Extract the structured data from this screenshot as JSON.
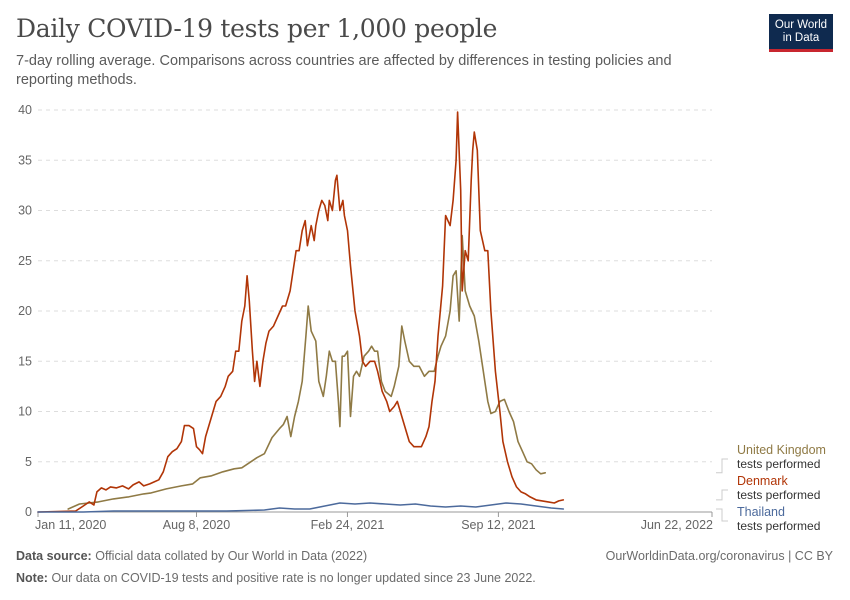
{
  "header": {
    "title": "Daily COVID-19 tests per 1,000 people",
    "subtitle": "7-day rolling average. Comparisons across countries are affected by differences in testing policies and reporting methods."
  },
  "logo": {
    "line1": "Our World",
    "line2": "in Data"
  },
  "footer": {
    "source_label": "Data source:",
    "source_text": "Official data collated by Our World in Data (2022)",
    "attribution": "OurWorldinData.org/coronavirus | CC BY",
    "note_label": "Note:",
    "note_text": "Our data on COVID-19 tests and positive rate is no longer updated since 23 June 2022."
  },
  "chart_data": {
    "type": "line",
    "title": "Daily COVID-19 tests per 1,000 people",
    "xlabel": "",
    "ylabel": "",
    "ylim": [
      0,
      40
    ],
    "y_ticks": [
      0,
      5,
      10,
      15,
      20,
      25,
      30,
      35,
      40
    ],
    "x_range_days": [
      0,
      893
    ],
    "x_ticks": [
      {
        "day": 0,
        "label": "Jan 11, 2020"
      },
      {
        "day": 210,
        "label": "Aug 8, 2020"
      },
      {
        "day": 410,
        "label": "Feb 24, 2021"
      },
      {
        "day": 610,
        "label": "Sep 12, 2021"
      },
      {
        "day": 893,
        "label": "Jun 22, 2022"
      }
    ],
    "grid": true,
    "legend_position": "right",
    "series": [
      {
        "name": "United Kingdom",
        "sublabel": "tests performed",
        "color": "#8f7a45",
        "points": [
          [
            40,
            0.3
          ],
          [
            55,
            0.8
          ],
          [
            80,
            1
          ],
          [
            100,
            1.3
          ],
          [
            120,
            1.5
          ],
          [
            140,
            1.8
          ],
          [
            150,
            1.9
          ],
          [
            170,
            2.3
          ],
          [
            190,
            2.6
          ],
          [
            205,
            2.8
          ],
          [
            215,
            3.4
          ],
          [
            230,
            3.6
          ],
          [
            245,
            4
          ],
          [
            260,
            4.3
          ],
          [
            270,
            4.4
          ],
          [
            280,
            4.9
          ],
          [
            290,
            5.4
          ],
          [
            300,
            5.8
          ],
          [
            310,
            7.4
          ],
          [
            320,
            8.3
          ],
          [
            325,
            8.7
          ],
          [
            330,
            9.5
          ],
          [
            335,
            7.5
          ],
          [
            340,
            9.5
          ],
          [
            345,
            11
          ],
          [
            350,
            13
          ],
          [
            355,
            17.5
          ],
          [
            358,
            20.5
          ],
          [
            362,
            18
          ],
          [
            368,
            17
          ],
          [
            372,
            13
          ],
          [
            378,
            11.5
          ],
          [
            382,
            13.5
          ],
          [
            386,
            16
          ],
          [
            390,
            15
          ],
          [
            394,
            15
          ],
          [
            398,
            11
          ],
          [
            400,
            8.5
          ],
          [
            403,
            15.5
          ],
          [
            406,
            15.5
          ],
          [
            410,
            16
          ],
          [
            414,
            9.5
          ],
          [
            418,
            13.5
          ],
          [
            422,
            14
          ],
          [
            426,
            13.5
          ],
          [
            432,
            15.5
          ],
          [
            438,
            16
          ],
          [
            442,
            16.5
          ],
          [
            446,
            16
          ],
          [
            450,
            16
          ],
          [
            455,
            13
          ],
          [
            460,
            12
          ],
          [
            468,
            11.5
          ],
          [
            472,
            12.5
          ],
          [
            478,
            14.5
          ],
          [
            482,
            18.5
          ],
          [
            486,
            17
          ],
          [
            492,
            15
          ],
          [
            498,
            14.5
          ],
          [
            505,
            14.5
          ],
          [
            512,
            13.5
          ],
          [
            518,
            14
          ],
          [
            525,
            14
          ],
          [
            530,
            15.5
          ],
          [
            534,
            16.5
          ],
          [
            540,
            17.5
          ],
          [
            546,
            20
          ],
          [
            550,
            23.5
          ],
          [
            554,
            24
          ],
          [
            558,
            19
          ],
          [
            562,
            27.5
          ],
          [
            566,
            22
          ],
          [
            572,
            20.5
          ],
          [
            578,
            19.5
          ],
          [
            584,
            17
          ],
          [
            590,
            14
          ],
          [
            596,
            11
          ],
          [
            600,
            9.8
          ],
          [
            606,
            10
          ],
          [
            612,
            11
          ],
          [
            618,
            11.2
          ],
          [
            624,
            10
          ],
          [
            630,
            9
          ],
          [
            636,
            7
          ],
          [
            642,
            6
          ],
          [
            648,
            5
          ],
          [
            654,
            4.8
          ],
          [
            660,
            4.2
          ],
          [
            666,
            3.8
          ],
          [
            672,
            3.9
          ]
        ]
      },
      {
        "name": "Denmark",
        "sublabel": "tests performed",
        "color": "#b13507",
        "points": [
          [
            0,
            0
          ],
          [
            50,
            0.1
          ],
          [
            60,
            0.6
          ],
          [
            68,
            1
          ],
          [
            74,
            0.7
          ],
          [
            78,
            2
          ],
          [
            84,
            2.4
          ],
          [
            90,
            2.2
          ],
          [
            96,
            2.5
          ],
          [
            104,
            2.4
          ],
          [
            112,
            2.6
          ],
          [
            120,
            2.3
          ],
          [
            126,
            2.7
          ],
          [
            134,
            3
          ],
          [
            140,
            2.6
          ],
          [
            148,
            2.8
          ],
          [
            154,
            3
          ],
          [
            160,
            3.2
          ],
          [
            166,
            4
          ],
          [
            172,
            5.5
          ],
          [
            178,
            6
          ],
          [
            184,
            6.3
          ],
          [
            190,
            7
          ],
          [
            194,
            8.6
          ],
          [
            200,
            8.6
          ],
          [
            206,
            8.3
          ],
          [
            210,
            6.5
          ],
          [
            214,
            6.2
          ],
          [
            218,
            5.8
          ],
          [
            222,
            7.5
          ],
          [
            230,
            9.5
          ],
          [
            236,
            11
          ],
          [
            242,
            11.5
          ],
          [
            248,
            12.5
          ],
          [
            252,
            13.5
          ],
          [
            258,
            14
          ],
          [
            262,
            16
          ],
          [
            266,
            16
          ],
          [
            270,
            19
          ],
          [
            274,
            20.5
          ],
          [
            277,
            23.5
          ],
          [
            280,
            21
          ],
          [
            284,
            16
          ],
          [
            287,
            13
          ],
          [
            290,
            15
          ],
          [
            294,
            12.5
          ],
          [
            298,
            15
          ],
          [
            302,
            16.8
          ],
          [
            306,
            18
          ],
          [
            312,
            18.5
          ],
          [
            318,
            19.5
          ],
          [
            324,
            20.5
          ],
          [
            328,
            20.5
          ],
          [
            334,
            22
          ],
          [
            338,
            24
          ],
          [
            342,
            26
          ],
          [
            346,
            26
          ],
          [
            350,
            28
          ],
          [
            354,
            29
          ],
          [
            357,
            26.5
          ],
          [
            362,
            28.5
          ],
          [
            366,
            27
          ],
          [
            368,
            28.5
          ],
          [
            372,
            30
          ],
          [
            376,
            31
          ],
          [
            380,
            30.5
          ],
          [
            384,
            29
          ],
          [
            386,
            31
          ],
          [
            390,
            30
          ],
          [
            394,
            33
          ],
          [
            396,
            33.5
          ],
          [
            400,
            30
          ],
          [
            404,
            31
          ],
          [
            406,
            29.5
          ],
          [
            410,
            28
          ],
          [
            414,
            24.5
          ],
          [
            420,
            20
          ],
          [
            426,
            17.5
          ],
          [
            430,
            15
          ],
          [
            434,
            14.5
          ],
          [
            440,
            15
          ],
          [
            446,
            15
          ],
          [
            450,
            14
          ],
          [
            456,
            12
          ],
          [
            462,
            11
          ],
          [
            466,
            10
          ],
          [
            472,
            10.5
          ],
          [
            476,
            11
          ],
          [
            482,
            9.5
          ],
          [
            488,
            8
          ],
          [
            492,
            7
          ],
          [
            498,
            6.5
          ],
          [
            504,
            6.5
          ],
          [
            508,
            6.5
          ],
          [
            514,
            7.5
          ],
          [
            518,
            8.5
          ],
          [
            522,
            11
          ],
          [
            526,
            13
          ],
          [
            530,
            17.5
          ],
          [
            536,
            22.5
          ],
          [
            540,
            29.5
          ],
          [
            546,
            28.5
          ],
          [
            550,
            31
          ],
          [
            554,
            35
          ],
          [
            556,
            39.8
          ],
          [
            560,
            32
          ],
          [
            562,
            22
          ],
          [
            566,
            26
          ],
          [
            570,
            25
          ],
          [
            574,
            33
          ],
          [
            576,
            36
          ],
          [
            578,
            37.8
          ],
          [
            582,
            36
          ],
          [
            586,
            28
          ],
          [
            592,
            26
          ],
          [
            596,
            26
          ],
          [
            600,
            20
          ],
          [
            606,
            14
          ],
          [
            612,
            10
          ],
          [
            616,
            7
          ],
          [
            622,
            5
          ],
          [
            628,
            3.5
          ],
          [
            634,
            2.5
          ],
          [
            640,
            2
          ],
          [
            646,
            1.8
          ],
          [
            652,
            1.5
          ],
          [
            660,
            1.2
          ],
          [
            668,
            1.1
          ],
          [
            676,
            1
          ],
          [
            684,
            0.9
          ],
          [
            690,
            1.1
          ],
          [
            696,
            1.2
          ]
        ]
      },
      {
        "name": "Thailand",
        "sublabel": "tests performed",
        "color": "#4c6a9c",
        "points": [
          [
            0,
            0
          ],
          [
            60,
            0
          ],
          [
            100,
            0.1
          ],
          [
            200,
            0.1
          ],
          [
            250,
            0.1
          ],
          [
            300,
            0.2
          ],
          [
            320,
            0.4
          ],
          [
            340,
            0.3
          ],
          [
            360,
            0.3
          ],
          [
            380,
            0.6
          ],
          [
            400,
            0.9
          ],
          [
            420,
            0.8
          ],
          [
            440,
            0.9
          ],
          [
            460,
            0.8
          ],
          [
            480,
            0.7
          ],
          [
            500,
            0.8
          ],
          [
            520,
            0.6
          ],
          [
            540,
            0.5
          ],
          [
            560,
            0.6
          ],
          [
            580,
            0.5
          ],
          [
            600,
            0.7
          ],
          [
            620,
            0.9
          ],
          [
            640,
            0.8
          ],
          [
            660,
            0.6
          ],
          [
            680,
            0.4
          ],
          [
            696,
            0.3
          ]
        ]
      }
    ]
  }
}
